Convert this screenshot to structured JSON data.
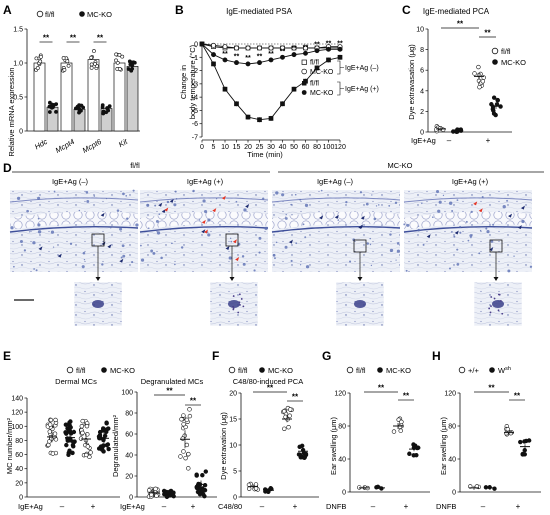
{
  "panels": [
    "A",
    "B",
    "C",
    "D",
    "E",
    "F",
    "G",
    "H"
  ],
  "legend": {
    "fl": "fl/fl",
    "mc": "MC-KO",
    "wt": "+/+",
    "wsh": "W",
    "wsh_sup": "sh"
  },
  "sig": "**",
  "sign": {
    "minus": "–",
    "plus": "+"
  },
  "panelA": {
    "ylabel": "Relative mRNA expression",
    "yticks": [
      "0",
      "0.5",
      "1.0",
      "1.5"
    ],
    "genes": [
      "Hdc",
      "Mcpt4",
      "Mcpt6",
      "Kit"
    ],
    "chart_data": {
      "type": "bar",
      "categories": [
        "Hdc",
        "Mcpt4",
        "Mcpt6",
        "Kit"
      ],
      "ylim": [
        0,
        1.5
      ],
      "series": [
        {
          "name": "fl/fl",
          "values": [
            1.0,
            1.0,
            1.05,
            1.0
          ]
        },
        {
          "name": "MC-KO",
          "values": [
            0.35,
            0.32,
            0.33,
            0.95
          ]
        }
      ]
    }
  },
  "panelB": {
    "title": "IgE-mediated PSA",
    "ylabel1": "Change in",
    "ylabel2": "body temperature (°C)",
    "xlabel": "Time (min)",
    "yticks": [
      "0",
      "-1",
      "-2",
      "-3",
      "-4",
      "-5",
      "-6",
      "-7"
    ],
    "xticks": [
      "0",
      "5",
      "10",
      "15",
      "20",
      "25",
      "30",
      "40",
      "50",
      "60",
      "80",
      "100",
      "120"
    ],
    "legend_neg": "IgE+Ag (–)",
    "legend_pos": "IgE+Ag (+)",
    "chart_data": {
      "type": "line",
      "x": [
        0,
        5,
        10,
        15,
        20,
        25,
        30,
        40,
        50,
        60,
        80,
        100,
        120
      ],
      "ylim": [
        -7,
        0
      ],
      "series": [
        {
          "name": "fl/fl",
          "group": "IgE+Ag (–)",
          "values": [
            0,
            -0.2,
            -0.3,
            -0.3,
            -0.3,
            -0.3,
            -0.3,
            -0.3,
            -0.3,
            -0.3,
            -0.3,
            -0.3,
            -0.3
          ]
        },
        {
          "name": "MC-KO",
          "group": "IgE+Ag (–)",
          "values": [
            0,
            -0.1,
            -0.2,
            -0.3,
            -0.3,
            -0.3,
            -0.3,
            -0.3,
            -0.3,
            -0.3,
            -0.3,
            -0.2,
            -0.2
          ]
        },
        {
          "name": "fl/fl",
          "group": "IgE+Ag (+)",
          "values": [
            0,
            -1.5,
            -3.4,
            -4.5,
            -5.5,
            -5.7,
            -5.6,
            -4.5,
            -3.4,
            -2.8,
            -1.8,
            -1.2,
            -1.0
          ]
        },
        {
          "name": "MC-KO",
          "group": "IgE+Ag (+)",
          "values": [
            0,
            -0.8,
            -1.2,
            -1.4,
            -1.5,
            -1.4,
            -1.2,
            -1.0,
            -0.8,
            -0.7,
            -0.5,
            -0.4,
            -0.4
          ]
        }
      ]
    }
  },
  "panelC": {
    "title": "IgE-mediated PCA",
    "ylabel": "Dye extravasation (μg)",
    "yticks": [
      "0",
      "2",
      "4",
      "6",
      "8",
      "10"
    ],
    "xlabel": "IgE+Ag",
    "chart_data": {
      "type": "scatter",
      "categories": [
        "IgE+Ag (–)",
        "IgE+Ag (+)"
      ],
      "ylim": [
        0,
        10
      ],
      "series": [
        {
          "name": "fl/fl",
          "means": [
            0.3,
            5.4
          ]
        },
        {
          "name": "MC-KO",
          "means": [
            0.2,
            2.5
          ]
        }
      ]
    }
  },
  "panelD": {
    "group_fl": "fl/fl",
    "group_ko": "MC-KO",
    "neg_label": "IgE+Ag (–)",
    "pos_label": "IgE+Ag (+)"
  },
  "panelE": {
    "title_left": "Dermal MCs",
    "title_right": "Degranulated MCs",
    "ylabel_left": "MC number/mm²",
    "ylabel_right": "Degranulated/mm²",
    "yticks_left": [
      "0",
      "20",
      "40",
      "60",
      "80",
      "100",
      "120",
      "140"
    ],
    "yticks_right": [
      "0",
      "20",
      "40",
      "60",
      "80",
      "100"
    ],
    "xlabel": "IgE+Ag",
    "chart_data": [
      {
        "type": "scatter",
        "title": "Dermal MCs",
        "categories": [
          "–",
          "+"
        ],
        "ylim": [
          0,
          140
        ],
        "series": [
          {
            "name": "fl/fl",
            "means": [
              85,
              82
            ]
          },
          {
            "name": "MC-KO",
            "means": [
              84,
              83
            ]
          }
        ]
      },
      {
        "type": "scatter",
        "title": "Degranulated MCs",
        "categories": [
          "–",
          "+"
        ],
        "ylim": [
          0,
          100
        ],
        "series": [
          {
            "name": "fl/fl",
            "means": [
              4,
              55
            ]
          },
          {
            "name": "MC-KO",
            "means": [
              3,
              12
            ]
          }
        ]
      }
    ]
  },
  "panelF": {
    "title": "C48/80-induced PCA",
    "ylabel": "Dye extravation (μg)",
    "yticks": [
      "0",
      "5",
      "10",
      "15",
      "20"
    ],
    "xlabel": "C48/80",
    "chart_data": {
      "type": "scatter",
      "categories": [
        "–",
        "+"
      ],
      "ylim": [
        0,
        20
      ],
      "series": [
        {
          "name": "fl/fl",
          "means": [
            2,
            15
          ]
        },
        {
          "name": "MC-KO",
          "means": [
            1.3,
            8.8
          ]
        }
      ]
    }
  },
  "panelG": {
    "ylabel": "Ear swelling (μm)",
    "yticks": [
      "0",
      "40",
      "80",
      "120"
    ],
    "xlabel": "DNFB",
    "chart_data": {
      "type": "scatter",
      "categories": [
        "–",
        "+"
      ],
      "ylim": [
        0,
        120
      ],
      "series": [
        {
          "name": "fl/fl",
          "means": [
            5,
            80
          ]
        },
        {
          "name": "MC-KO",
          "means": [
            5,
            52
          ]
        }
      ]
    }
  },
  "panelH": {
    "ylabel": "Ear swelling (μm)",
    "yticks": [
      "0",
      "40",
      "80",
      "120"
    ],
    "xlabel": "DNFB",
    "chart_data": {
      "type": "scatter",
      "categories": [
        "–",
        "+"
      ],
      "ylim": [
        0,
        120
      ],
      "series": [
        {
          "name": "+/+",
          "means": [
            5,
            72
          ]
        },
        {
          "name": "Wsh",
          "means": [
            5,
            55
          ]
        }
      ]
    }
  },
  "colors": {
    "ink": "#111111",
    "grey_bar": "#cfcfcf",
    "stain": "#5b6fb3",
    "tissue": "#e9ecf4",
    "red_arrow": "#e53525",
    "navy_arrow": "#1d2b70"
  }
}
